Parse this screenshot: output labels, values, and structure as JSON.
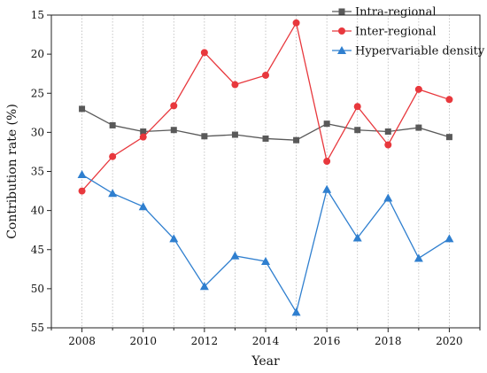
{
  "chart_data": {
    "type": "line",
    "x": [
      2008,
      2009,
      2010,
      2011,
      2012,
      2013,
      2014,
      2015,
      2016,
      2017,
      2018,
      2019,
      2020
    ],
    "xlabel": "Year",
    "ylabel": "Contribution rate (%)",
    "xlim": [
      2007,
      2021
    ],
    "ylim": [
      15,
      55
    ],
    "y_reversed": true,
    "x_ticks": [
      2008,
      2010,
      2012,
      2014,
      2016,
      2018,
      2020
    ],
    "y_ticks": [
      15,
      20,
      25,
      30,
      35,
      40,
      45,
      50,
      55
    ],
    "vertical_dotted_guides": true,
    "legend_position": "top-right",
    "series": [
      {
        "name": "Intra-regional",
        "color": "#595959",
        "marker": "square",
        "values": [
          27.0,
          29.1,
          29.9,
          29.7,
          30.5,
          30.3,
          30.8,
          31.0,
          28.9,
          29.7,
          29.9,
          29.4,
          30.6
        ]
      },
      {
        "name": "Inter-regional",
        "color": "#e8383d",
        "marker": "circle",
        "values": [
          37.5,
          33.1,
          30.6,
          26.6,
          19.8,
          23.9,
          22.7,
          16.0,
          33.7,
          26.7,
          31.6,
          24.5,
          25.8
        ]
      },
      {
        "name": "Hypervariable density",
        "color": "#2f7fcf",
        "marker": "triangle",
        "values": [
          35.4,
          37.8,
          39.5,
          43.6,
          49.7,
          45.8,
          46.5,
          53.0,
          37.3,
          43.5,
          38.4,
          46.1,
          43.6
        ]
      }
    ]
  }
}
